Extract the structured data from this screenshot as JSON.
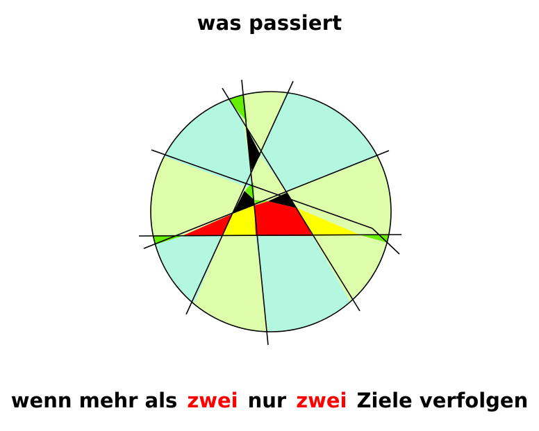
{
  "title": "was passiert",
  "caption": {
    "part1": "wenn mehr als",
    "highlight1": "zwei",
    "part2": "nur",
    "highlight2": "zwei",
    "part3": "Ziele verfolgen"
  },
  "colors": {
    "text": "#000000",
    "highlight": "#ff0000",
    "aqua": "#b3f7e0",
    "lime": "#ddfdaa",
    "green": "#66ee00",
    "black": "#000000",
    "red": "#ff0000",
    "yellow": "#ffff00"
  }
}
